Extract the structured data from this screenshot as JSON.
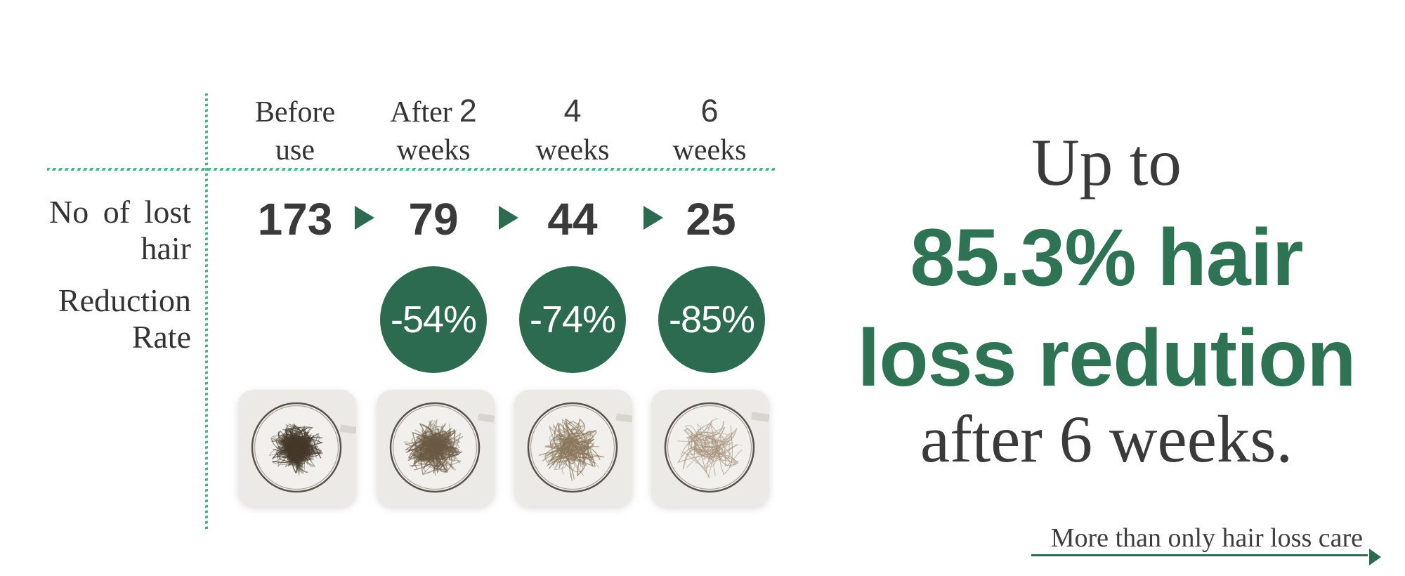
{
  "colors": {
    "accent_green": "#2c6b4f",
    "headline_green": "#2d7354",
    "mint_dotted_line": "#49b487",
    "dark_text": "#3a3a3a"
  },
  "table": {
    "row_labels": {
      "lost_hair_line1": "No of lost",
      "lost_hair_line2": "hair",
      "reduction_line1": "Reduction",
      "reduction_line2": "Rate"
    },
    "columns": [
      {
        "header_serif": "Before",
        "header_digit": "",
        "header_line2": "use",
        "value": "173",
        "reduction": ""
      },
      {
        "header_serif": "After",
        "header_digit": "2",
        "header_line2": "weeks",
        "value": "79",
        "reduction": "-54%"
      },
      {
        "header_serif": "",
        "header_digit": "4",
        "header_line2": "weeks",
        "value": "44",
        "reduction": "-74%"
      },
      {
        "header_serif": "",
        "header_digit": "6",
        "header_line2": "weeks",
        "value": "25",
        "reduction": "-85%"
      }
    ]
  },
  "chart_data": {
    "type": "table",
    "categories": [
      "Before use",
      "After 2 weeks",
      "4 weeks",
      "6 weeks"
    ],
    "series": [
      {
        "name": "No of lost hair",
        "values": [
          173,
          79,
          44,
          25
        ]
      },
      {
        "name": "Reduction Rate (%)",
        "values": [
          null,
          -54,
          -74,
          -85
        ]
      }
    ],
    "title": "Up to 85.3% hair loss redution after 6 weeks."
  },
  "headline": {
    "line1": "Up to",
    "line2": "85.3% hair",
    "line3": "loss redution",
    "line4": "after 6 weeks."
  },
  "footer": {
    "tagline": "More than only hair loss care"
  },
  "dish_photos": [
    {
      "name": "before-use-sample",
      "description": "Petri dish with dense dark clump of lost hair"
    },
    {
      "name": "after-2-weeks-sample",
      "description": "Petri dish with moderately dense hair tangle"
    },
    {
      "name": "after-4-weeks-sample",
      "description": "Petri dish with sparse light hair strands"
    },
    {
      "name": "after-6-weeks-sample",
      "description": "Petri dish with very sparse faint hair strands"
    }
  ]
}
